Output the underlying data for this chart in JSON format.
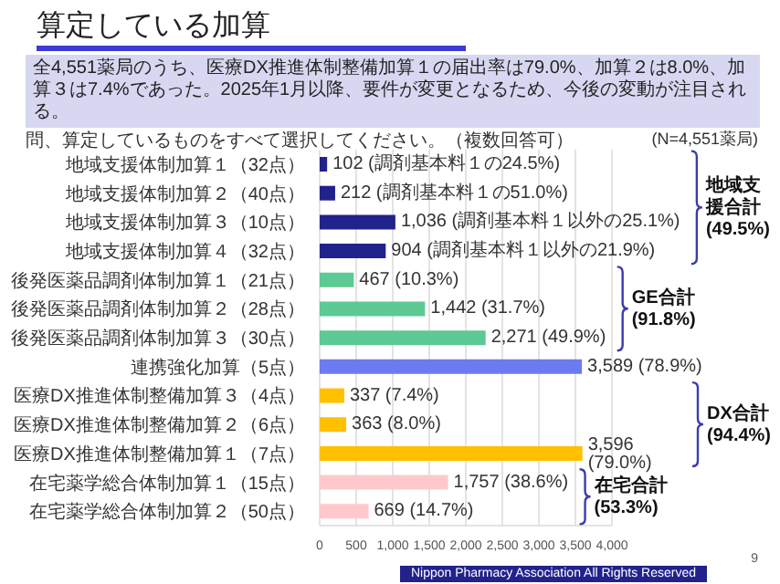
{
  "chart_data": {
    "type": "bar",
    "orientation": "horizontal",
    "title": "算定している加算",
    "subtitle": "全4,551薬局のうち、医療DX推進体制整備加算１の届出率は79.0%、加算２は8.0%、加算３は7.4%であった。2025年1月以降、要件が変更となるため、今後の変動が注目される。",
    "categories": [
      "地域支援体制加算１（32点）",
      "地域支援体制加算２（40点）",
      "地域支援体制加算３（10点）",
      "地域支援体制加算４（32点）",
      "後発医薬品調剤体制加算１（21点）",
      "後発医薬品調剤体制加算２（28点）",
      "後発医薬品調剤体制加算３（30点）",
      "連携強化加算（5点）",
      "医療DX推進体制整備加算３（4点）",
      "医療DX推進体制整備加算２（6点）",
      "医療DX推進体制整備加算１（7点）",
      "在宅薬学総合体制加算１（15点）",
      "在宅薬学総合体制加算２（50点）"
    ],
    "values": [
      102,
      212,
      1036,
      904,
      467,
      1442,
      2271,
      3589,
      337,
      363,
      3596,
      1757,
      669
    ],
    "colors": [
      "#22228c",
      "#22228c",
      "#22228c",
      "#22228c",
      "#5dc994",
      "#5dc994",
      "#5dc994",
      "#6c7bef",
      "#ffc000",
      "#ffc000",
      "#ffc000",
      "#ffc9cc",
      "#ffc9cc"
    ],
    "value_labels": [
      "102 (調剤基本料１の24.5%)",
      "212 (調剤基本料１の51.0%)",
      "1,036 (調剤基本料１以外の25.1%)",
      "904 (調剤基本料１以外の21.9%)",
      "467 (10.3%)",
      "1,442 (31.7%)",
      "2,271 (49.9%)",
      "3,589 (78.9%)",
      "337 (7.4%)",
      "363 (8.0%)",
      "3,596 (79.0%)",
      "1,757 (38.6%)",
      "669 (14.7%)"
    ],
    "xlim": [
      0,
      4000
    ],
    "xticks": [
      {
        "value": 0,
        "label": "0"
      },
      {
        "value": 500,
        "label": "500"
      },
      {
        "value": 1000,
        "label": "1,000"
      },
      {
        "value": 1500,
        "label": "1,500"
      },
      {
        "value": 2000,
        "label": "2,000"
      },
      {
        "value": 2500,
        "label": "2,500"
      },
      {
        "value": 3000,
        "label": "3,000"
      },
      {
        "value": 3500,
        "label": "3,500"
      },
      {
        "value": 4000,
        "label": "4,000"
      }
    ],
    "grid": "x",
    "annotations": [
      "地域支援合計 (49.5%)",
      "GE合計 (91.8%)",
      "DX合計 (94.4%)",
      "在宅合計 (53.3%)",
      "問、算定しているものをすべて選択してください。（複数回答可）",
      "(N=4,551薬局)",
      "Nippon Pharmacy Association All Rights Reserved",
      "9"
    ]
  }
}
